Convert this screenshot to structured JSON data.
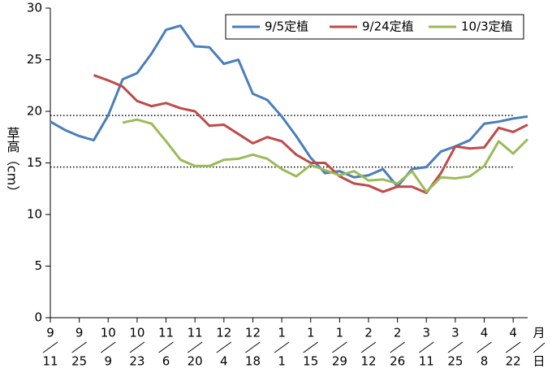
{
  "chart_data": {
    "type": "line",
    "ylabel": "草高（cm）",
    "x_unit": {
      "month": "月",
      "day": "日"
    },
    "categories": [
      {
        "month": "9",
        "day": "11"
      },
      null,
      {
        "month": "9",
        "day": "25"
      },
      null,
      {
        "month": "10",
        "day": "9"
      },
      null,
      {
        "month": "10",
        "day": "23"
      },
      null,
      {
        "month": "11",
        "day": "6"
      },
      null,
      {
        "month": "11",
        "day": "20"
      },
      null,
      {
        "month": "12",
        "day": "4"
      },
      null,
      {
        "month": "12",
        "day": "18"
      },
      null,
      {
        "month": "1",
        "day": "1"
      },
      null,
      {
        "month": "1",
        "day": "15"
      },
      null,
      {
        "month": "1",
        "day": "29"
      },
      null,
      {
        "month": "2",
        "day": "12"
      },
      null,
      {
        "month": "2",
        "day": "26"
      },
      null,
      {
        "month": "3",
        "day": "11"
      },
      null,
      {
        "month": "3",
        "day": "25"
      },
      null,
      {
        "month": "4",
        "day": "8"
      },
      null,
      {
        "month": "4",
        "day": "22"
      },
      null
    ],
    "series": [
      {
        "name": "9/5定植",
        "color": "#4a7ebb",
        "values": [
          19.0,
          18.2,
          17.6,
          17.2,
          19.6,
          23.1,
          23.7,
          25.6,
          27.9,
          28.3,
          26.3,
          26.2,
          24.6,
          25.0,
          21.7,
          21.1,
          19.5,
          17.6,
          15.5,
          14.0,
          14.2,
          13.6,
          13.8,
          14.4,
          12.7,
          14.4,
          14.6,
          16.1,
          16.6,
          17.2,
          18.8,
          19.0,
          19.3,
          19.5
        ]
      },
      {
        "name": "9/24定植",
        "color": "#be4b48",
        "values": [
          null,
          null,
          null,
          23.5,
          23.0,
          22.4,
          21.0,
          20.5,
          20.8,
          20.3,
          20.0,
          18.6,
          18.7,
          17.8,
          16.9,
          17.5,
          17.1,
          15.8,
          15.0,
          15.0,
          13.7,
          13.0,
          12.8,
          12.2,
          12.7,
          12.7,
          12.1,
          14.0,
          16.6,
          16.4,
          16.5,
          18.4,
          18.0,
          18.7
        ]
      },
      {
        "name": "10/3定植",
        "color": "#9bbb59",
        "values": [
          null,
          null,
          null,
          null,
          null,
          18.9,
          19.2,
          18.8,
          17.1,
          15.3,
          14.7,
          14.7,
          15.3,
          15.4,
          15.8,
          15.4,
          14.4,
          13.7,
          14.8,
          14.3,
          13.8,
          14.2,
          13.3,
          13.4,
          13.0,
          14.2,
          12.2,
          13.6,
          13.5,
          13.7,
          14.7,
          17.1,
          15.9,
          17.3
        ]
      }
    ],
    "reference_lines": [
      19.6,
      14.6
    ],
    "ylim": [
      0,
      30
    ],
    "yticks": [
      0,
      5,
      10,
      15,
      20,
      25,
      30
    ],
    "legend": "upper right"
  }
}
